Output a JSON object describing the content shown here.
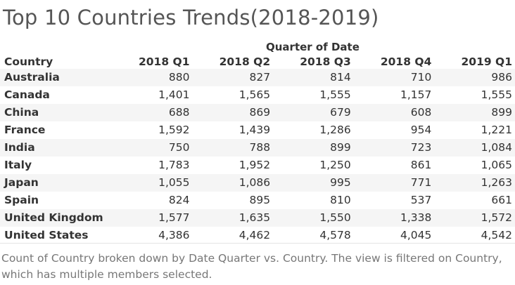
{
  "title": "Top 10 Countries Trends(2018-2019)",
  "column_group_header": "Quarter of Date",
  "row_header": "Country",
  "caption": "Count of Country broken down by Date Quarter vs. Country.  The view is filtered on Country, which has multiple members selected.",
  "chart_data": {
    "type": "table",
    "title": "Top 10 Countries Trends(2018-2019)",
    "columns": [
      "2018 Q1",
      "2018 Q2",
      "2018 Q3",
      "2018 Q4",
      "2019 Q1"
    ],
    "rows": [
      {
        "country": "Australia",
        "values": [
          "880",
          "827",
          "814",
          "710",
          "986"
        ]
      },
      {
        "country": "Canada",
        "values": [
          "1,401",
          "1,565",
          "1,555",
          "1,157",
          "1,555"
        ]
      },
      {
        "country": "China",
        "values": [
          "688",
          "869",
          "679",
          "608",
          "899"
        ]
      },
      {
        "country": "France",
        "values": [
          "1,592",
          "1,439",
          "1,286",
          "954",
          "1,221"
        ]
      },
      {
        "country": "India",
        "values": [
          "750",
          "788",
          "899",
          "723",
          "1,084"
        ]
      },
      {
        "country": "Italy",
        "values": [
          "1,783",
          "1,952",
          "1,250",
          "861",
          "1,065"
        ]
      },
      {
        "country": "Japan",
        "values": [
          "1,055",
          "1,086",
          "995",
          "771",
          "1,263"
        ]
      },
      {
        "country": "Spain",
        "values": [
          "824",
          "895",
          "810",
          "537",
          "661"
        ]
      },
      {
        "country": "United Kingdom",
        "values": [
          "1,577",
          "1,635",
          "1,550",
          "1,338",
          "1,572"
        ]
      },
      {
        "country": "United States",
        "values": [
          "4,386",
          "4,462",
          "4,578",
          "4,045",
          "4,542"
        ]
      }
    ]
  }
}
